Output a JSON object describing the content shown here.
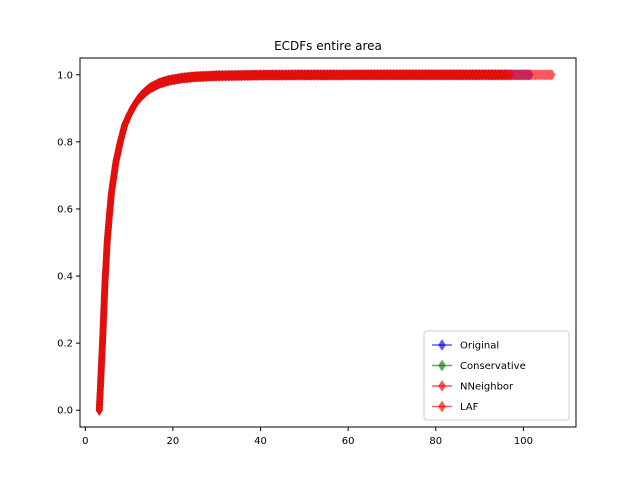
{
  "chart_data": {
    "type": "line",
    "title": "ECDFs entire area",
    "xlabel": "",
    "ylabel": "",
    "xlim": [
      -1.2,
      112
    ],
    "ylim": [
      -0.05,
      1.05
    ],
    "xticks": [
      0,
      20,
      40,
      60,
      80,
      100
    ],
    "yticks": [
      0.0,
      0.2,
      0.4,
      0.6,
      0.8,
      1.0
    ],
    "xtick_labels": [
      "0",
      "20",
      "40",
      "60",
      "80",
      "100"
    ],
    "ytick_labels": [
      "0.0",
      "0.2",
      "0.4",
      "0.6",
      "0.8",
      "1.0"
    ],
    "marker": "diamond",
    "legend_position": "lower-right",
    "grid": false,
    "series": [
      {
        "name": "Original",
        "color": "#0000ff",
        "x": [
          3.2,
          3.5,
          4,
          4.5,
          5,
          5.5,
          6,
          7,
          8,
          9,
          10,
          11,
          12,
          13,
          14,
          15,
          17,
          19,
          22,
          25,
          30,
          35,
          40,
          50,
          60,
          70,
          80,
          90,
          95,
          97,
          101.5
        ],
        "y": [
          0.0,
          0.08,
          0.22,
          0.38,
          0.5,
          0.58,
          0.65,
          0.74,
          0.8,
          0.85,
          0.88,
          0.905,
          0.925,
          0.94,
          0.952,
          0.962,
          0.975,
          0.983,
          0.99,
          0.994,
          0.997,
          0.998,
          0.999,
          0.9995,
          0.9997,
          0.9998,
          0.9999,
          0.99995,
          0.99998,
          0.99999,
          1.0
        ]
      },
      {
        "name": "Conservative",
        "color": "#008000",
        "x": [
          3.2,
          3.5,
          4,
          4.5,
          5,
          5.5,
          6,
          7,
          8,
          9,
          10,
          11,
          12,
          13,
          14,
          15,
          17,
          19,
          22,
          25,
          30,
          35,
          40,
          50,
          60,
          70,
          80,
          90,
          96
        ],
        "y": [
          0.0,
          0.08,
          0.22,
          0.38,
          0.5,
          0.58,
          0.65,
          0.74,
          0.8,
          0.85,
          0.88,
          0.905,
          0.925,
          0.94,
          0.952,
          0.962,
          0.975,
          0.983,
          0.99,
          0.994,
          0.997,
          0.998,
          0.999,
          0.9995,
          0.9997,
          0.9998,
          0.9999,
          0.99995,
          1.0
        ]
      },
      {
        "name": "NNeighbor",
        "color": "#ff0000",
        "x": [
          3.2,
          3.5,
          4,
          4.5,
          5,
          5.5,
          6,
          7,
          8,
          9,
          10,
          11,
          12,
          13,
          14,
          15,
          17,
          19,
          22,
          25,
          30,
          35,
          40,
          50,
          60,
          70,
          80,
          90,
          97
        ],
        "y": [
          0.0,
          0.08,
          0.22,
          0.38,
          0.5,
          0.58,
          0.65,
          0.74,
          0.8,
          0.85,
          0.88,
          0.905,
          0.925,
          0.94,
          0.952,
          0.962,
          0.975,
          0.983,
          0.99,
          0.994,
          0.997,
          0.998,
          0.999,
          0.9995,
          0.9997,
          0.9998,
          0.9999,
          0.99995,
          1.0
        ]
      },
      {
        "name": "LAF",
        "color": "#ff0000",
        "x": [
          3.2,
          3.5,
          4,
          4.5,
          5,
          5.5,
          6,
          7,
          8,
          9,
          10,
          11,
          12,
          13,
          14,
          15,
          17,
          19,
          22,
          25,
          30,
          35,
          40,
          50,
          60,
          70,
          80,
          86,
          90,
          92,
          95,
          106.5
        ],
        "y": [
          0.0,
          0.08,
          0.22,
          0.38,
          0.5,
          0.58,
          0.65,
          0.74,
          0.8,
          0.85,
          0.88,
          0.905,
          0.925,
          0.94,
          0.952,
          0.962,
          0.975,
          0.983,
          0.99,
          0.994,
          0.997,
          0.998,
          0.999,
          0.9995,
          0.9997,
          0.9998,
          0.9999,
          0.99993,
          0.99996,
          0.99997,
          0.99999,
          1.0
        ]
      }
    ]
  }
}
